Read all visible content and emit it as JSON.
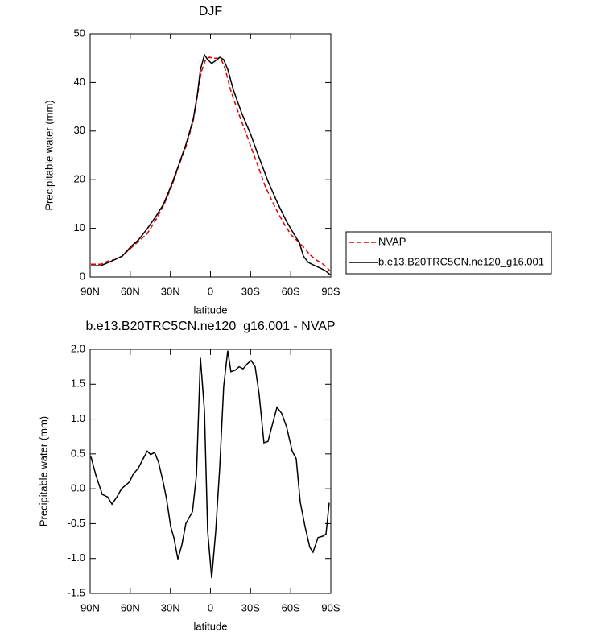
{
  "chart_data": [
    {
      "type": "line",
      "title": "DJF",
      "xlabel": "latitude",
      "ylabel": "Precipitable water (mm)",
      "xlim": [
        90,
        -90
      ],
      "xticks": [
        {
          "value": 90,
          "label": "90N"
        },
        {
          "value": 60,
          "label": "60N"
        },
        {
          "value": 30,
          "label": "30N"
        },
        0,
        {
          "value": -30,
          "label": "30S"
        },
        {
          "value": -60,
          "label": "60S"
        },
        {
          "value": -90,
          "label": "90S"
        }
      ],
      "ylim": [
        0,
        50
      ],
      "yticks": [
        0,
        10,
        20,
        30,
        40,
        50
      ],
      "legend": "right",
      "series": [
        {
          "name": "NVAP",
          "color": "#e00000",
          "linestyle": "dashed",
          "x": [
            89.4,
            82.2,
            76.2,
            71.3,
            65.9,
            59.3,
            53.9,
            47.3,
            41.2,
            35.2,
            29.2,
            23.8,
            17.8,
            12.9,
            9.9,
            6.9,
            3.9,
            0.9,
            -2.1,
            -5.1,
            -8.1,
            -11.1,
            -15.3,
            -21.4,
            -28.0,
            -34.6,
            -41.2,
            -48.5,
            -55.1,
            -60.5,
            -66.5,
            -70.1,
            -74.3,
            -78.5,
            -83.3,
            -86.9,
            -89.4
          ],
          "values": [
            2.6,
            2.6,
            3.3,
            3.6,
            4.3,
            6.0,
            7.3,
            8.9,
            11.6,
            14.6,
            18.5,
            22.8,
            27.2,
            32.1,
            37.1,
            42.1,
            44.5,
            45.2,
            45.0,
            45.0,
            44.7,
            42.7,
            38.2,
            33.4,
            28.5,
            23.5,
            18.5,
            14.2,
            10.9,
            8.6,
            7.0,
            6.0,
            4.6,
            3.6,
            2.8,
            2.0,
            1.2
          ]
        },
        {
          "name": "b.e13.B20TRC5CN.ne120_g16.001",
          "color": "#000000",
          "linestyle": "solid",
          "x": [
            89.4,
            82.2,
            76.2,
            71.3,
            65.9,
            59.3,
            53.9,
            47.3,
            41.2,
            35.2,
            29.2,
            23.8,
            17.8,
            12.9,
            9.9,
            7.5,
            4.5,
            2.1,
            -0.9,
            -3.9,
            -6.9,
            -9.9,
            -12.9,
            -17.2,
            -23.2,
            -29.8,
            -36.4,
            -43.0,
            -50.3,
            -56.9,
            -62.9,
            -66.5,
            -69.5,
            -73.1,
            -76.7,
            -82.1,
            -85.8,
            -89.4
          ],
          "values": [
            2.3,
            2.3,
            3.0,
            3.6,
            4.3,
            6.3,
            7.6,
            9.9,
            12.3,
            14.9,
            18.9,
            23.0,
            27.7,
            32.5,
            37.4,
            42.6,
            45.7,
            44.7,
            43.9,
            44.5,
            45.2,
            44.7,
            42.7,
            38.4,
            33.8,
            29.5,
            24.5,
            19.7,
            15.1,
            11.4,
            8.6,
            7.0,
            4.3,
            3.0,
            2.5,
            1.8,
            1.3,
            0.5
          ]
        }
      ]
    },
    {
      "type": "line",
      "title": "b.e13.B20TRC5CN.ne120_g16.001 - NVAP",
      "xlabel": "latitude",
      "ylabel": "Precipitable water (mm)",
      "xlim": [
        90,
        -90
      ],
      "xticks": [
        {
          "value": 90,
          "label": "90N"
        },
        {
          "value": 60,
          "label": "60N"
        },
        {
          "value": 30,
          "label": "30N"
        },
        0,
        {
          "value": -30,
          "label": "30S"
        },
        {
          "value": -60,
          "label": "60S"
        },
        {
          "value": -90,
          "label": "90S"
        }
      ],
      "ylim": [
        -1.5,
        2.0
      ],
      "yticks": [
        -1.5,
        {
          "value": -1,
          "label": "-1.0"
        },
        -0.5,
        {
          "value": 0,
          "label": "0.0"
        },
        0.5,
        {
          "value": 1,
          "label": "1.0"
        },
        1.5,
        {
          "value": 2,
          "label": "2.0"
        }
      ],
      "series": [
        {
          "color": "#000000",
          "linestyle": "solid",
          "x": [
            89.4,
            85.8,
            81.0,
            76.8,
            73.7,
            70.1,
            66.5,
            60.5,
            58.1,
            53.9,
            50.9,
            47.3,
            44.8,
            41.8,
            38.8,
            35.2,
            32.8,
            29.8,
            27.4,
            24.4,
            21.4,
            18.4,
            13.5,
            10.5,
            7.5,
            4.5,
            2.1,
            -0.9,
            -3.9,
            -6.9,
            -9.9,
            -12.9,
            -15.3,
            -18.4,
            -21.4,
            -24.4,
            -27.4,
            -30.4,
            -33.4,
            -36.4,
            -40.0,
            -43.0,
            -46.1,
            -49.7,
            -53.3,
            -56.9,
            -61.1,
            -64.1,
            -67.1,
            -70.7,
            -74.3,
            -76.7,
            -80.4,
            -84.0,
            -86.4,
            -88.8
          ],
          "values": [
            0.46,
            0.2,
            -0.08,
            -0.12,
            -0.22,
            -0.12,
            0.0,
            0.1,
            0.2,
            0.3,
            0.41,
            0.54,
            0.49,
            0.52,
            0.38,
            0.08,
            -0.15,
            -0.54,
            -0.7,
            -1.01,
            -0.8,
            -0.5,
            -0.33,
            0.2,
            1.88,
            1.12,
            -0.61,
            -1.28,
            -0.61,
            0.31,
            1.47,
            1.98,
            1.68,
            1.7,
            1.75,
            1.72,
            1.79,
            1.84,
            1.75,
            1.35,
            0.66,
            0.68,
            0.91,
            1.17,
            1.08,
            0.89,
            0.54,
            0.43,
            -0.19,
            -0.54,
            -0.84,
            -0.91,
            -0.7,
            -0.68,
            -0.65,
            -0.2
          ]
        }
      ]
    }
  ]
}
